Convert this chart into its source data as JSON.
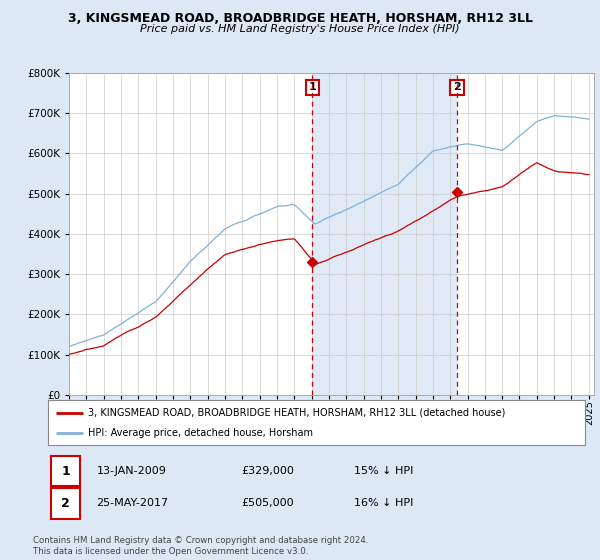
{
  "title": "3, KINGSMEAD ROAD, BROADBRIDGE HEATH, HORSHAM, RH12 3LL",
  "subtitle": "Price paid vs. HM Land Registry's House Price Index (HPI)",
  "legend_label_red": "3, KINGSMEAD ROAD, BROADBRIDGE HEATH, HORSHAM, RH12 3LL (detached house)",
  "legend_label_blue": "HPI: Average price, detached house, Horsham",
  "transaction1_date": "13-JAN-2009",
  "transaction1_price": "£329,000",
  "transaction1_hpi": "15% ↓ HPI",
  "transaction2_date": "25-MAY-2017",
  "transaction2_price": "£505,000",
  "transaction2_hpi": "16% ↓ HPI",
  "footer": "Contains HM Land Registry data © Crown copyright and database right 2024.\nThis data is licensed under the Open Government Licence v3.0.",
  "transaction1_x": 2009.04,
  "transaction1_y": 329000,
  "transaction2_x": 2017.39,
  "transaction2_y": 505000,
  "ylim": [
    0,
    800000
  ],
  "xlim_start": 1995.0,
  "xlim_end": 2025.3,
  "background_color": "#dce8f5",
  "plot_bg_color": "#ffffff",
  "shade_color": "#dce8f5",
  "red_color": "#cc0000",
  "blue_color": "#7fb3d9",
  "grid_color": "#cccccc",
  "title_fontsize": 9.0,
  "subtitle_fontsize": 8.0,
  "tick_fontsize": 7.0,
  "ytick_fontsize": 7.5
}
